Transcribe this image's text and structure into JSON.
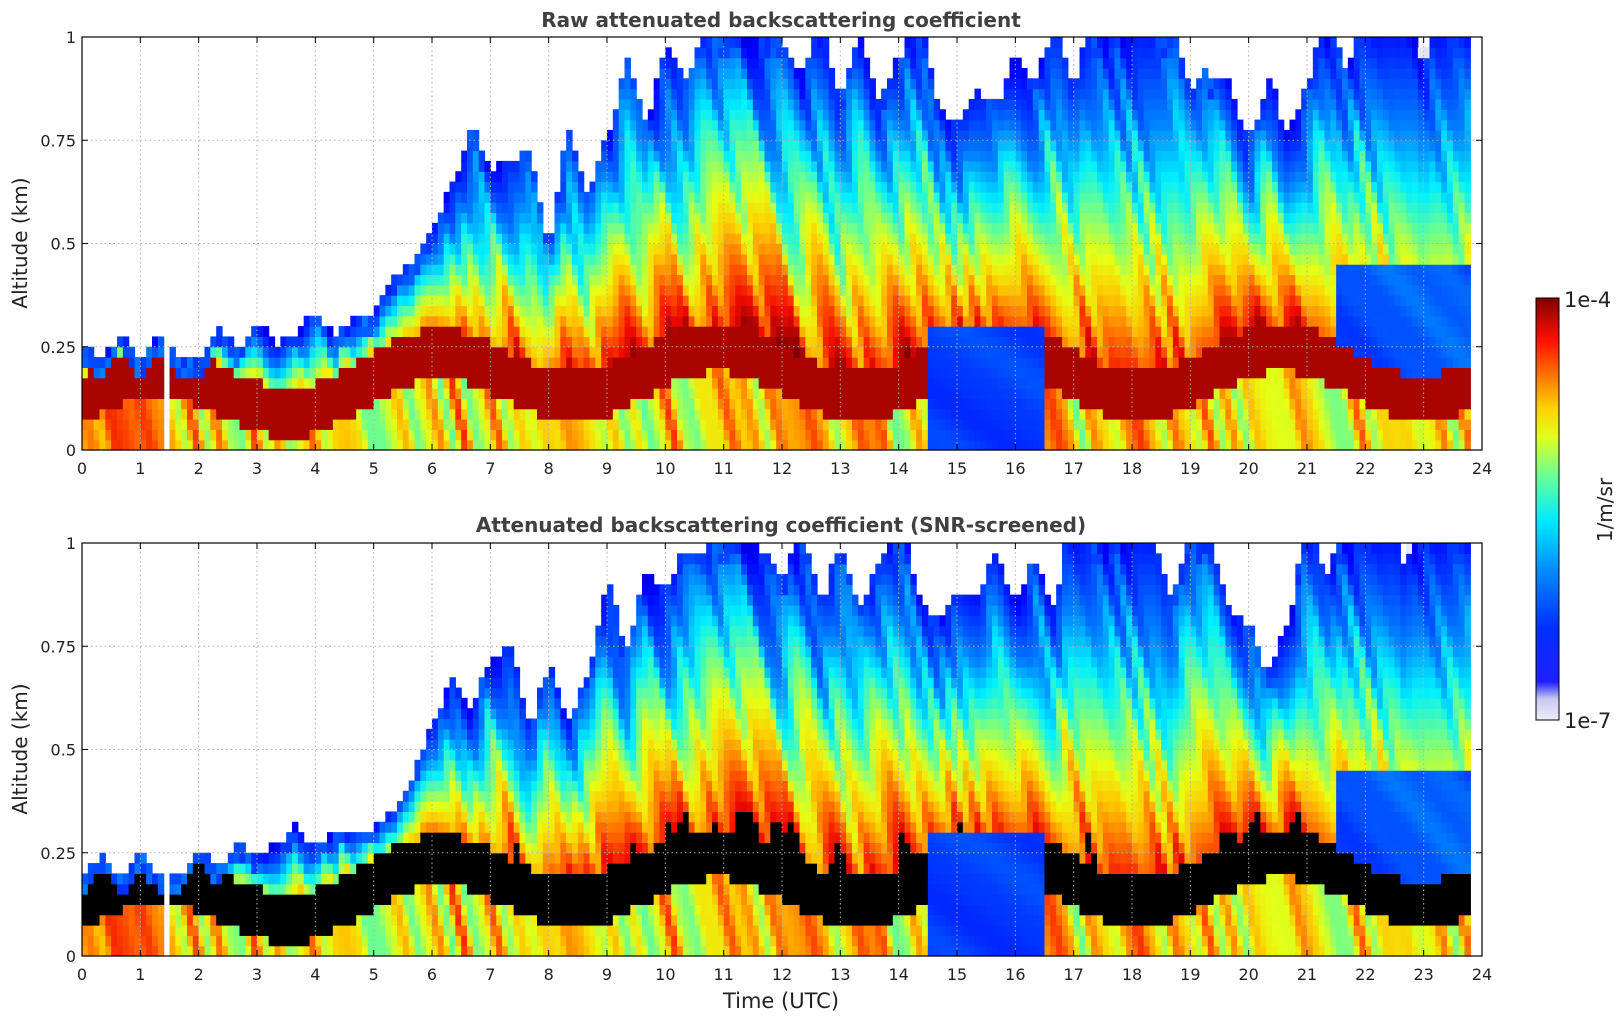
{
  "colors": {
    "text": "#333333",
    "title": "#404040",
    "grid": "#b0b0b0",
    "clear_air": "#e6e6f7",
    "screened_low": "#000000",
    "colormap_jet": [
      "#00007f",
      "#0000ff",
      "#007fff",
      "#00ffff",
      "#7fff7f",
      "#ffff00",
      "#ff7f00",
      "#ff0000",
      "#7f0000"
    ]
  },
  "colorbar": {
    "label": "1/m/sr",
    "max_label": "1e-4",
    "min_label": "1e-7",
    "scale": "log",
    "range": [
      1e-07,
      0.0001
    ]
  },
  "shared": {
    "xlabel": "Time (UTC)",
    "ylabel": "Altitude (km)",
    "x_ticks": [
      "0",
      "1",
      "2",
      "3",
      "4",
      "5",
      "6",
      "7",
      "8",
      "9",
      "10",
      "11",
      "12",
      "13",
      "14",
      "15",
      "16",
      "17",
      "18",
      "19",
      "20",
      "21",
      "22",
      "23",
      "24"
    ],
    "y_ticks": [
      "0",
      "0.25",
      "0.5",
      "0.75",
      "1"
    ],
    "xlim": [
      0,
      24
    ],
    "ylim": [
      0,
      1
    ],
    "grid": true
  },
  "chart_data": [
    {
      "type": "heatmap",
      "title": "Raw attenuated backscattering coefficient",
      "xlabel": "",
      "ylabel": "Altitude (km)",
      "xlim": [
        0,
        24
      ],
      "ylim": [
        0,
        1
      ],
      "x_ticks": [
        0,
        1,
        2,
        3,
        4,
        5,
        6,
        7,
        8,
        9,
        10,
        11,
        12,
        13,
        14,
        15,
        16,
        17,
        18,
        19,
        20,
        21,
        22,
        23,
        24
      ],
      "y_ticks": [
        0,
        0.25,
        0.5,
        0.75,
        1
      ],
      "grid": true,
      "z_scale": "log",
      "z_range": [
        1e-07,
        0.0001
      ],
      "z_unit": "1/m/sr",
      "data_gap_utc": [
        1.42,
        1.52
      ],
      "data_end_utc": 23.8,
      "approx_layer_top_km": [
        [
          0,
          0.24
        ],
        [
          1,
          0.25
        ],
        [
          2,
          0.25
        ],
        [
          3,
          0.29
        ],
        [
          4,
          0.3
        ],
        [
          5,
          0.32
        ],
        [
          6,
          0.62
        ],
        [
          7,
          0.8
        ],
        [
          8,
          0.6
        ],
        [
          9,
          0.8
        ],
        [
          10,
          0.95
        ],
        [
          11,
          1.0
        ],
        [
          12,
          1.0
        ],
        [
          13,
          1.0
        ],
        [
          14,
          1.0
        ],
        [
          15,
          0.9
        ],
        [
          16,
          0.85
        ],
        [
          17,
          1.0
        ],
        [
          18,
          0.95
        ],
        [
          19,
          1.0
        ],
        [
          20,
          0.7
        ],
        [
          21,
          1.0
        ],
        [
          22,
          1.0
        ],
        [
          23,
          1.0
        ]
      ]
    },
    {
      "type": "heatmap",
      "title": "Attenuated backscattering coefficient (SNR-screened)",
      "xlabel": "Time (UTC)",
      "ylabel": "Altitude (km)",
      "xlim": [
        0,
        24
      ],
      "ylim": [
        0,
        1
      ],
      "x_ticks": [
        0,
        1,
        2,
        3,
        4,
        5,
        6,
        7,
        8,
        9,
        10,
        11,
        12,
        13,
        14,
        15,
        16,
        17,
        18,
        19,
        20,
        21,
        22,
        23,
        24
      ],
      "y_ticks": [
        0,
        0.25,
        0.5,
        0.75,
        1
      ],
      "grid": true,
      "z_scale": "log",
      "z_range": [
        1e-07,
        0.0001
      ],
      "z_unit": "1/m/sr",
      "data_gap_utc": [
        1.42,
        1.52
      ],
      "data_end_utc": 23.8,
      "approx_layer_top_km": [
        [
          0,
          0.21
        ],
        [
          1,
          0.22
        ],
        [
          2,
          0.23
        ],
        [
          3,
          0.27
        ],
        [
          4,
          0.29
        ],
        [
          5,
          0.31
        ],
        [
          6,
          0.6
        ],
        [
          7,
          0.75
        ],
        [
          8,
          0.6
        ],
        [
          9,
          0.8
        ],
        [
          10,
          0.95
        ],
        [
          11,
          1.0
        ],
        [
          12,
          1.0
        ],
        [
          13,
          1.0
        ],
        [
          14,
          1.0
        ],
        [
          15,
          0.9
        ],
        [
          16,
          0.85
        ],
        [
          17,
          1.0
        ],
        [
          18,
          0.95
        ],
        [
          19,
          1.0
        ],
        [
          20,
          0.7
        ],
        [
          21,
          1.0
        ],
        [
          22,
          1.0
        ],
        [
          23,
          1.0
        ]
      ]
    }
  ]
}
